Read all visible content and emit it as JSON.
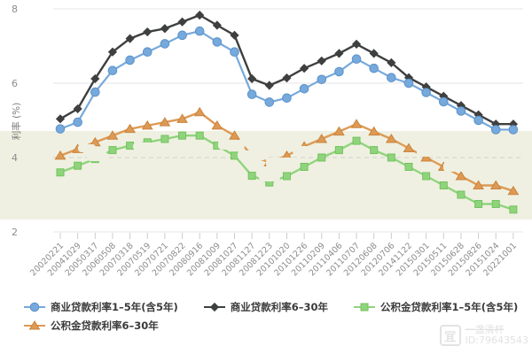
{
  "chart_data": {
    "type": "line",
    "title": "",
    "xlabel": "",
    "ylabel": "利率 (%)",
    "ylim": [
      2,
      8
    ],
    "yticks": [
      2,
      4,
      6,
      8
    ],
    "grid": true,
    "legend_position": "bottom",
    "x_labels": [
      "20020221",
      "20041029",
      "20050317",
      "20060508",
      "20070318",
      "20070519",
      "20070721",
      "20070822",
      "20080916",
      "20081009",
      "20081027",
      "20081127",
      "20081223",
      "20101020",
      "20101226",
      "20110209",
      "20110406",
      "20110707",
      "20120608",
      "20120706",
      "20141122",
      "20150301",
      "20150511",
      "20150628",
      "20150826",
      "20151024",
      "20221001"
    ],
    "series": [
      {
        "name": "商业贷款利率1–5年(含5年)",
        "marker": "circle",
        "color": "#76a9dc",
        "stroke": "#5e92c8",
        "values": [
          4.77,
          4.95,
          5.76,
          6.34,
          6.62,
          6.84,
          7.06,
          7.29,
          7.4,
          7.11,
          6.84,
          5.7,
          5.49,
          5.6,
          5.85,
          6.1,
          6.31,
          6.65,
          6.4,
          6.15,
          6.0,
          5.75,
          5.5,
          5.25,
          5.0,
          4.75,
          4.75
        ]
      },
      {
        "name": "商业贷款利率6–30年",
        "marker": "diamond",
        "color": "#3e3f3f",
        "stroke": "#3e3f3f",
        "values": [
          5.04,
          5.31,
          6.12,
          6.84,
          7.2,
          7.38,
          7.47,
          7.65,
          7.83,
          7.56,
          7.29,
          6.12,
          5.94,
          6.14,
          6.4,
          6.6,
          6.8,
          7.05,
          6.8,
          6.55,
          6.15,
          5.9,
          5.65,
          5.4,
          5.15,
          4.9,
          4.9
        ]
      },
      {
        "name": "公积金贷款利率1–5年(含5年)",
        "marker": "square",
        "color": "#8fd47c",
        "stroke": "#74c25f",
        "values": [
          3.6,
          3.78,
          3.96,
          4.2,
          4.32,
          4.41,
          4.5,
          4.59,
          4.59,
          4.32,
          4.05,
          3.51,
          3.33,
          3.5,
          3.75,
          4.0,
          4.2,
          4.45,
          4.2,
          4.0,
          3.75,
          3.5,
          3.25,
          3.0,
          2.75,
          2.75,
          2.6
        ]
      },
      {
        "name": "公积金贷款利率6–30年",
        "marker": "triangle",
        "color": "#dd9a55",
        "stroke": "#cb833c",
        "values": [
          4.05,
          4.23,
          4.41,
          4.59,
          4.77,
          4.86,
          4.95,
          5.04,
          5.22,
          4.86,
          4.59,
          4.05,
          3.87,
          4.05,
          4.3,
          4.5,
          4.7,
          4.9,
          4.7,
          4.5,
          4.25,
          4.0,
          3.75,
          3.5,
          3.25,
          3.25,
          3.1
        ]
      }
    ]
  },
  "colors": {
    "band": "#eff0e1",
    "grid": "#e4e4e4",
    "dashed_grid": "#cfcfcf",
    "tick": "#cccccc",
    "axis_text": "#8c8c8c",
    "legend_text": "#3a3a3a"
  },
  "watermark": {
    "logo_glyph": "冝",
    "name": "一盏清杯",
    "id_text": "ID:79643543"
  }
}
